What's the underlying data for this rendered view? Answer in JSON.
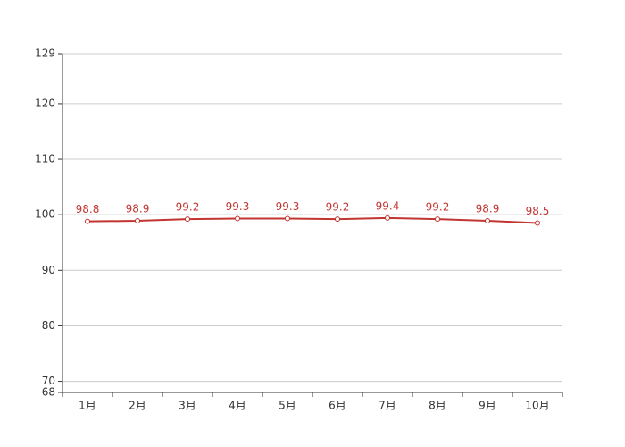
{
  "chart_data": {
    "type": "line",
    "categories": [
      "1月",
      "2月",
      "3月",
      "4月",
      "5月",
      "6月",
      "7月",
      "8月",
      "9月",
      "10月"
    ],
    "series": [
      {
        "color": "#c23531",
        "values": [
          98.8,
          98.9,
          99.2,
          99.3,
          99.3,
          99.2,
          99.4,
          99.2,
          98.9,
          98.5
        ]
      }
    ],
    "ylim": [
      68,
      129
    ],
    "yticks": [
      68,
      70,
      80,
      90,
      100,
      110,
      120,
      129
    ],
    "grid": true
  }
}
